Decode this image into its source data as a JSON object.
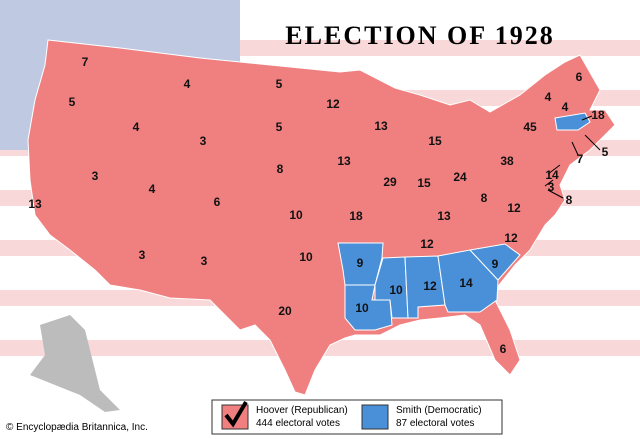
{
  "title": "ELECTION OF 1928",
  "states": [
    7,
    5,
    13,
    3,
    4,
    4,
    3,
    4,
    6,
    3,
    3,
    5,
    5,
    8,
    10,
    10,
    20,
    12,
    13,
    18,
    9,
    10,
    13,
    29,
    15,
    15,
    24,
    13,
    12,
    10,
    12,
    14,
    6,
    9,
    12,
    12,
    8,
    38,
    45,
    4,
    4,
    6,
    18,
    5,
    7,
    14,
    3,
    8
  ],
  "legend": {
    "hoover": {
      "name": "Hoover (Republican)",
      "votes": "444 electoral votes"
    },
    "smith": {
      "name": "Smith (Democratic)",
      "votes": "87 electoral votes"
    }
  },
  "credit": "© Encyclopædia Britannica, Inc."
}
